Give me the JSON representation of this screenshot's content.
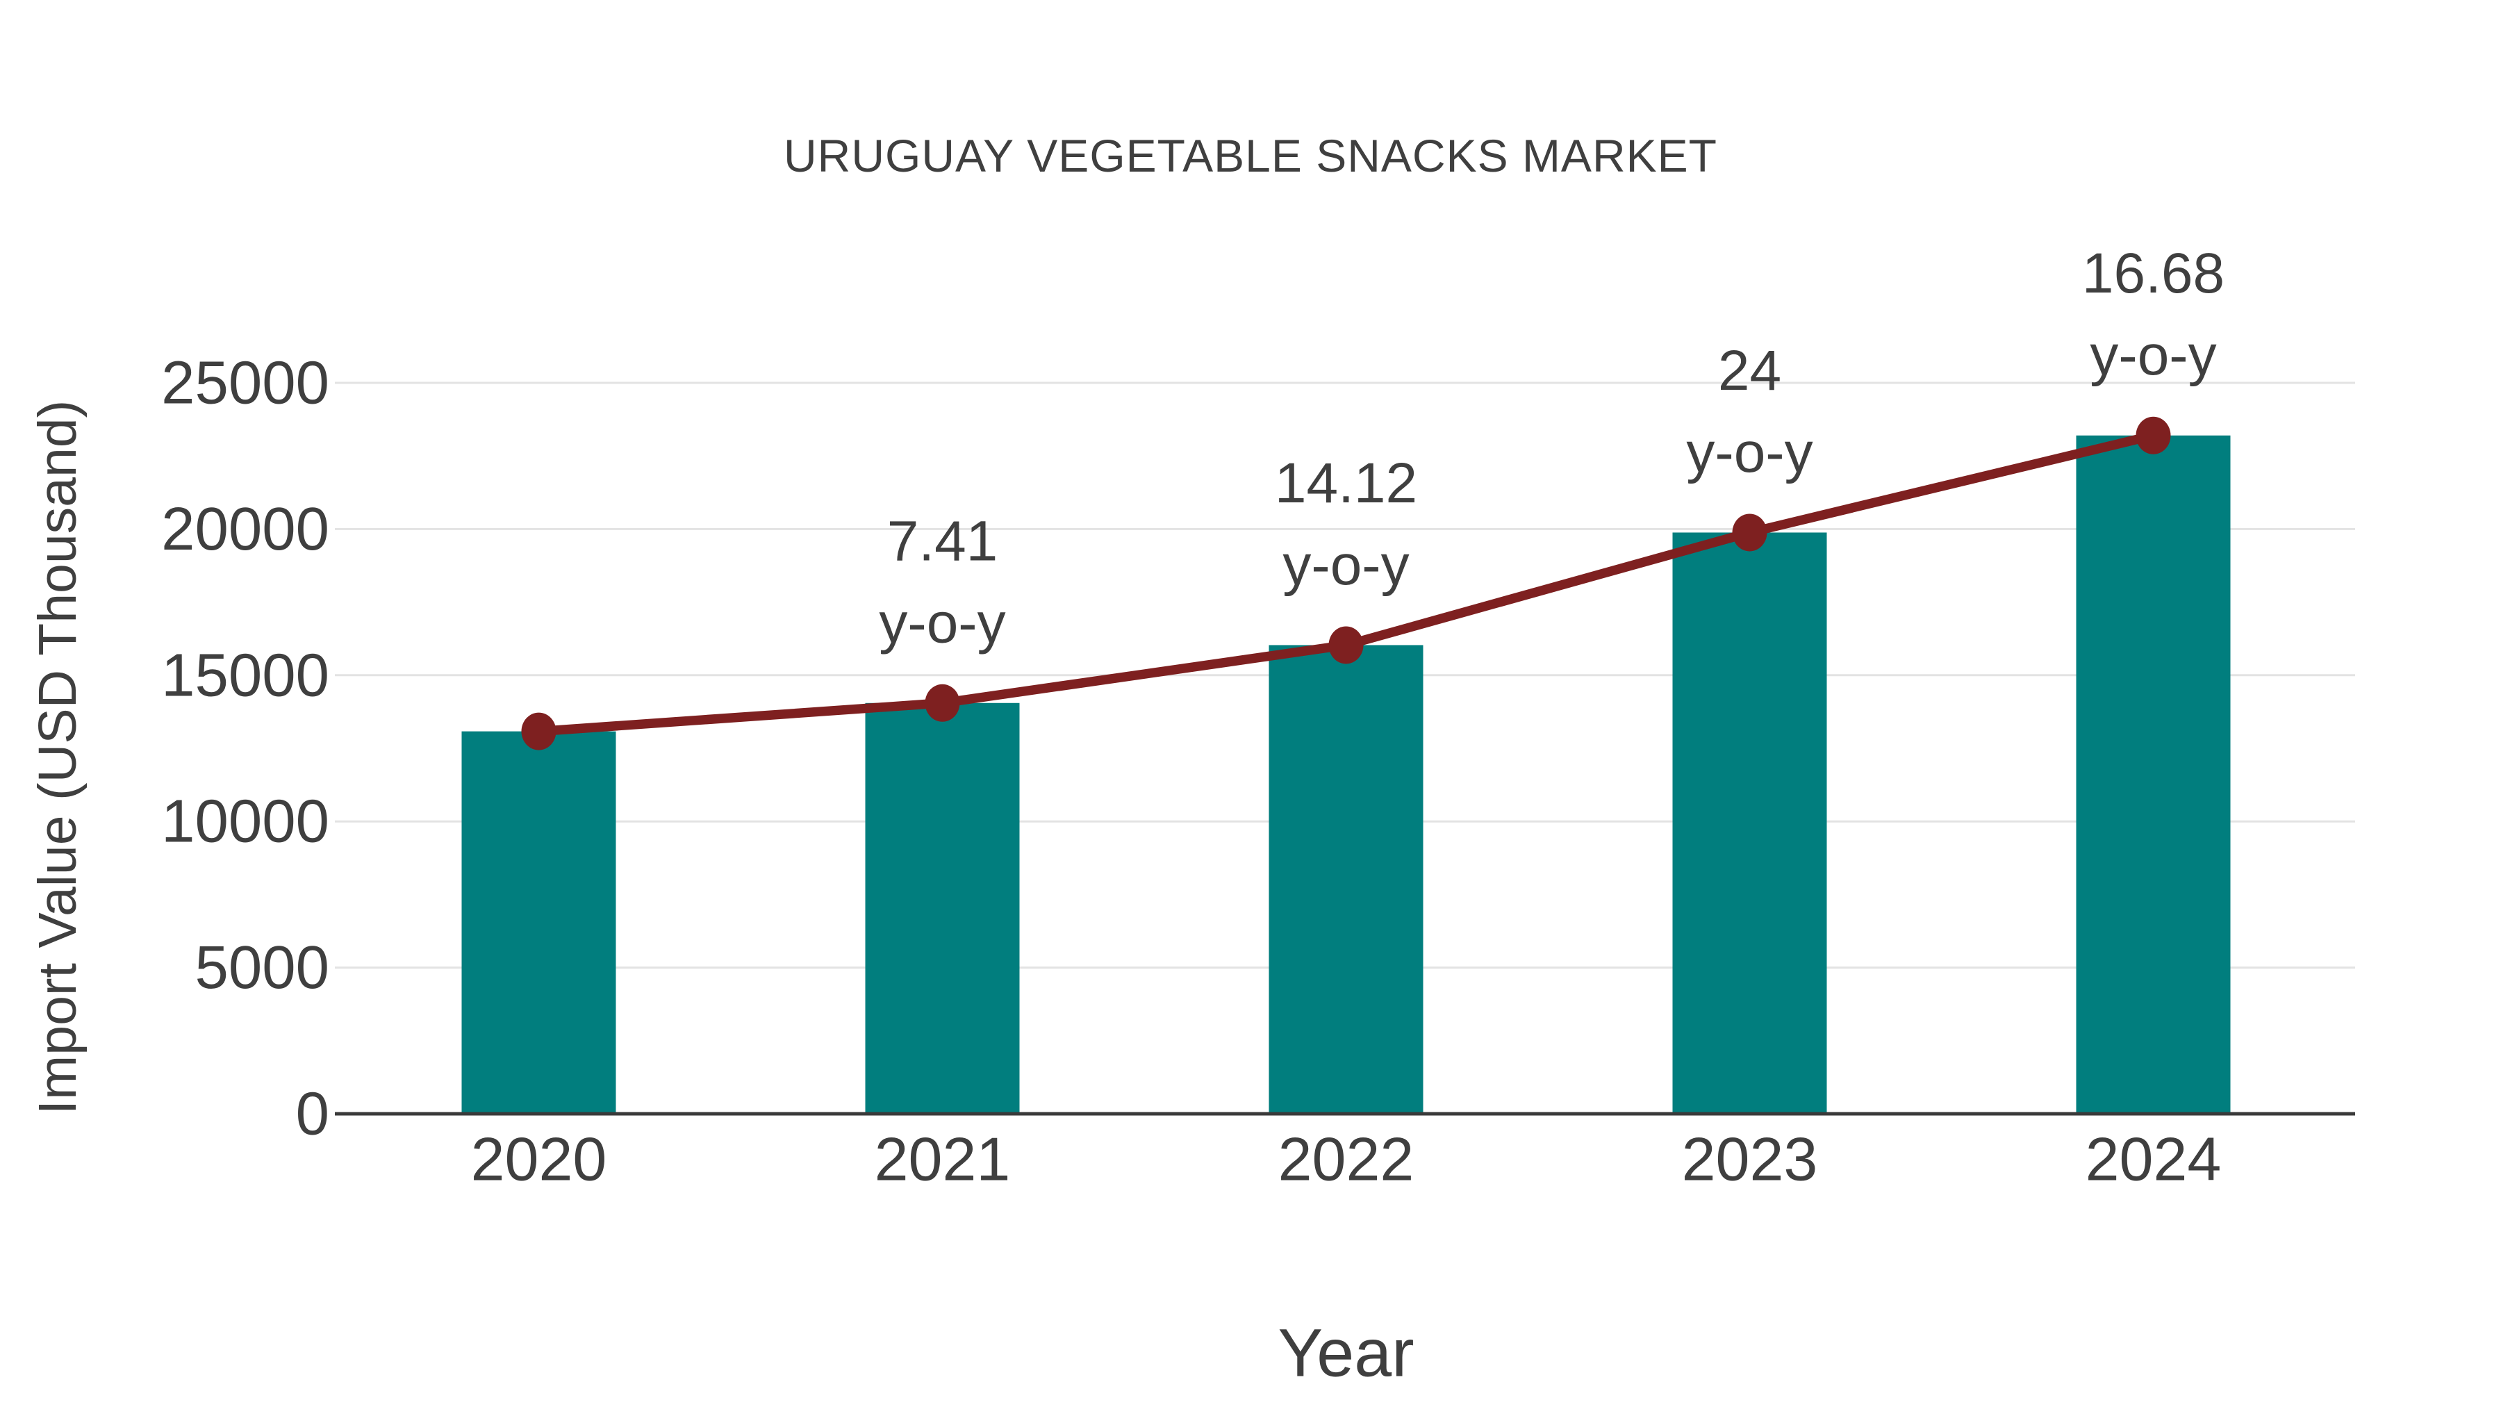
{
  "title": "URUGUAY VEGETABLE SNACKS MARKET",
  "chart_data": {
    "type": "bar",
    "subtype": "bar-with-line-overlay",
    "title": "URUGUAY VEGETABLE SNACKS MARKET",
    "xlabel": "Year",
    "ylabel": "Import Value (USD Thousand)",
    "categories": [
      "2020",
      "2021",
      "2022",
      "2023",
      "2024"
    ],
    "series": [
      {
        "name": "Import Value bars",
        "type": "bar",
        "values": [
          13080,
          14050,
          16030,
          19880,
          23200
        ]
      },
      {
        "name": "Import Value trend line",
        "type": "line",
        "values": [
          13080,
          14050,
          16030,
          19880,
          23200
        ]
      }
    ],
    "annotations": [
      {
        "category": "2021",
        "lines": [
          "7.41",
          "y-o-y"
        ]
      },
      {
        "category": "2022",
        "lines": [
          "14.12",
          "y-o-y"
        ]
      },
      {
        "category": "2023",
        "lines": [
          "24",
          "y-o-y"
        ]
      },
      {
        "category": "2024",
        "lines": [
          "16.68",
          "y-o-y"
        ]
      }
    ],
    "yticks": [
      0,
      5000,
      10000,
      15000,
      20000,
      25000
    ],
    "ylim": [
      0,
      25000
    ],
    "grid": true,
    "legend": "none",
    "colors": {
      "bar": "#017E7E",
      "line": "#7E2020",
      "marker": "#7E2020",
      "grid": "#e3e3e3",
      "axis": "#3a3a3a",
      "text": "#3f3f3f"
    }
  }
}
